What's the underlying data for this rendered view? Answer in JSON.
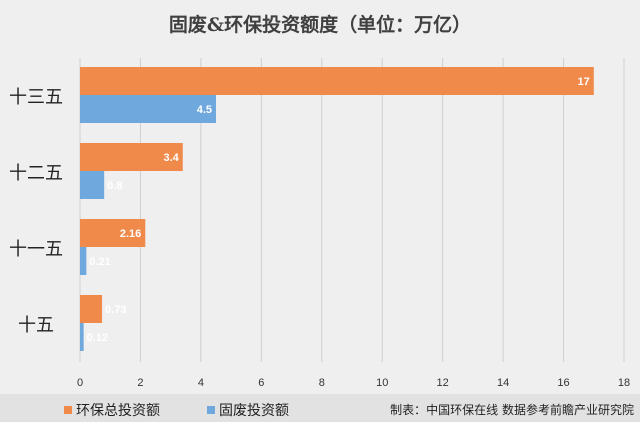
{
  "chart_data": {
    "type": "bar",
    "orientation": "horizontal",
    "title": "固废&环保投资额度（单位：万亿）",
    "categories": [
      "十三五",
      "十二五",
      "十一五",
      "十五"
    ],
    "series": [
      {
        "name": "环保总投资额",
        "color": "#f08a4b",
        "values": [
          17,
          3.4,
          2.16,
          0.73
        ]
      },
      {
        "name": "固废投资额",
        "color": "#6fa8dc",
        "values": [
          4.5,
          0.8,
          0.21,
          0.12
        ]
      }
    ],
    "data_labels": [
      [
        "17",
        "4.5"
      ],
      [
        "3.4",
        "0.8"
      ],
      [
        "2.16",
        "0.21"
      ],
      [
        "0.73",
        "0.12"
      ]
    ],
    "xlim": [
      0,
      18
    ],
    "xticks": [
      0,
      2,
      4,
      6,
      8,
      10,
      12,
      14,
      16,
      18
    ],
    "xtick_labels": [
      "0",
      "2",
      "4",
      "6",
      "8",
      "10",
      "12",
      "14",
      "16",
      "18"
    ],
    "grid": "vertical",
    "legend_position": "bottom-left",
    "xlabel": "",
    "ylabel": ""
  },
  "legend": [
    "环保总投资额",
    "固废投资额"
  ],
  "source": "制表：中国环保在线 数据参考前瞻产业研究院"
}
